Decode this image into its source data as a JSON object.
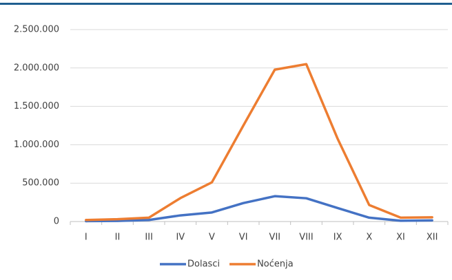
{
  "chart_data": {
    "type": "line",
    "categories": [
      "I",
      "II",
      "III",
      "IV",
      "V",
      "VI",
      "VII",
      "VIII",
      "IX",
      "X",
      "XI",
      "XII"
    ],
    "series": [
      {
        "name": "Dolasci",
        "color": "#4472c4",
        "values": [
          5000,
          8000,
          20000,
          80000,
          118000,
          240000,
          330000,
          303000,
          175000,
          50000,
          10000,
          15000
        ]
      },
      {
        "name": "Noćenja",
        "color": "#ed7d31",
        "values": [
          20000,
          30000,
          50000,
          305000,
          510000,
          1250000,
          1978000,
          2050000,
          1075000,
          215000,
          50000,
          55000
        ]
      }
    ],
    "ylim": [
      0,
      2500000
    ],
    "yticks": [
      0,
      {
        "value": 500000,
        "label": "500.000"
      },
      {
        "value": 1000000,
        "label": "1.000.000"
      },
      {
        "value": 1500000,
        "label": "1.500.000"
      },
      {
        "value": 2000000,
        "label": "2.000.000"
      },
      {
        "value": 2500000,
        "label": "2.500.000"
      }
    ],
    "grid": true,
    "legend": "bottom"
  }
}
